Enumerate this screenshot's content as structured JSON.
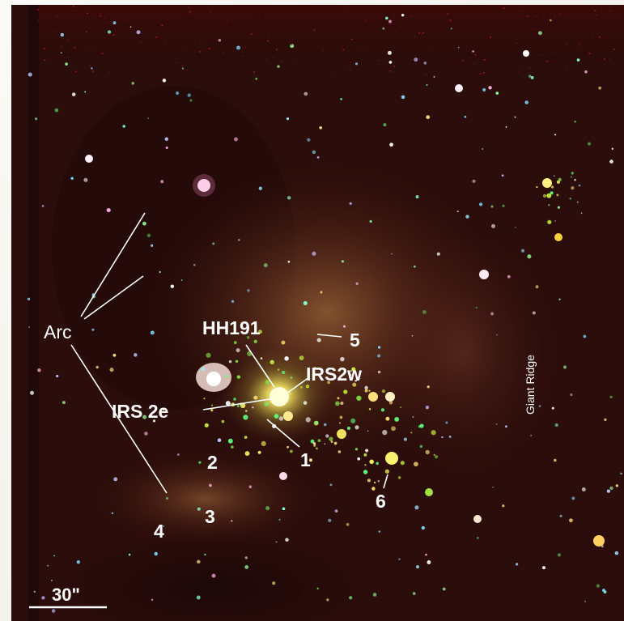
{
  "labels": {
    "arc": "Arc",
    "hh191": "HH191",
    "n5": "5",
    "irs2w": "IRS2w",
    "irs2e": "IRS 2e",
    "n1": "1",
    "n2": "2",
    "n3": "3",
    "n4": "4",
    "n6": "6",
    "giant_ridge": "Giant Ridge"
  },
  "scale_bar": {
    "label": "30\""
  }
}
